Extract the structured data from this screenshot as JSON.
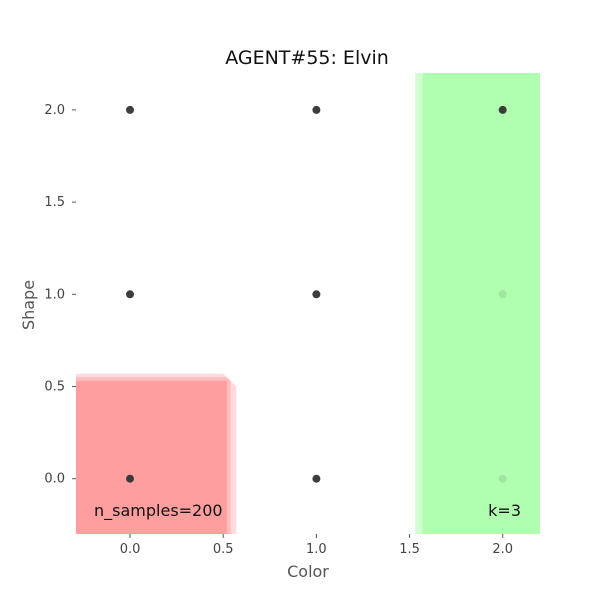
{
  "chart_data": {
    "type": "scatter",
    "title": "AGENT#55: Elvin",
    "xlabel": "Color",
    "ylabel": "Shape",
    "xlim": [
      -0.29,
      2.2
    ],
    "ylim": [
      -0.3,
      2.2
    ],
    "xticks": [
      0.0,
      0.5,
      1.0,
      1.5,
      2.0
    ],
    "xtick_labels": [
      "0.0",
      "0.5",
      "1.0",
      "1.5",
      "2.0"
    ],
    "yticks": [
      0.0,
      0.5,
      1.0,
      1.5,
      2.0
    ],
    "ytick_labels": [
      "0.0",
      "0.5",
      "1.0",
      "1.5",
      "2.0"
    ],
    "grid": false,
    "points": [
      {
        "x": 0,
        "y": 2
      },
      {
        "x": 1,
        "y": 2
      },
      {
        "x": 2,
        "y": 2
      },
      {
        "x": 0,
        "y": 1
      },
      {
        "x": 1,
        "y": 1
      },
      {
        "x": 2,
        "y": 1,
        "faded": true
      },
      {
        "x": 0,
        "y": 0
      },
      {
        "x": 1,
        "y": 0
      },
      {
        "x": 2,
        "y": 0,
        "faded": true
      }
    ],
    "point_color": "#333333",
    "regions": [
      {
        "color": "#ff9999",
        "layers": [
          {
            "opacity": 0.35,
            "poly": [
              [
                -0.29,
                -0.3
              ],
              [
                -0.29,
                0.57
              ],
              [
                0.5,
                0.57
              ],
              [
                0.57,
                0.5
              ],
              [
                0.57,
                -0.3
              ]
            ]
          },
          {
            "opacity": 0.45,
            "poly": [
              [
                -0.29,
                -0.3
              ],
              [
                -0.29,
                0.55
              ],
              [
                0.52,
                0.55
              ],
              [
                0.54,
                0.53
              ],
              [
                0.54,
                -0.3
              ]
            ]
          },
          {
            "opacity": 0.85,
            "poly": [
              [
                -0.29,
                -0.3
              ],
              [
                -0.29,
                0.53
              ],
              [
                0.52,
                0.53
              ],
              [
                0.52,
                -0.3
              ]
            ]
          }
        ]
      },
      {
        "color": "#99ff99",
        "layers": [
          {
            "opacity": 0.45,
            "poly": [
              [
                1.53,
                -0.3
              ],
              [
                1.53,
                2.2
              ],
              [
                2.2,
                2.2
              ],
              [
                2.2,
                -0.3
              ]
            ]
          },
          {
            "opacity": 0.6,
            "poly": [
              [
                1.57,
                -0.3
              ],
              [
                1.57,
                2.2
              ],
              [
                2.2,
                2.2
              ],
              [
                2.2,
                -0.3
              ]
            ]
          }
        ]
      }
    ],
    "annotations": {
      "n_samples": "n_samples=200",
      "k": "k=3"
    }
  }
}
